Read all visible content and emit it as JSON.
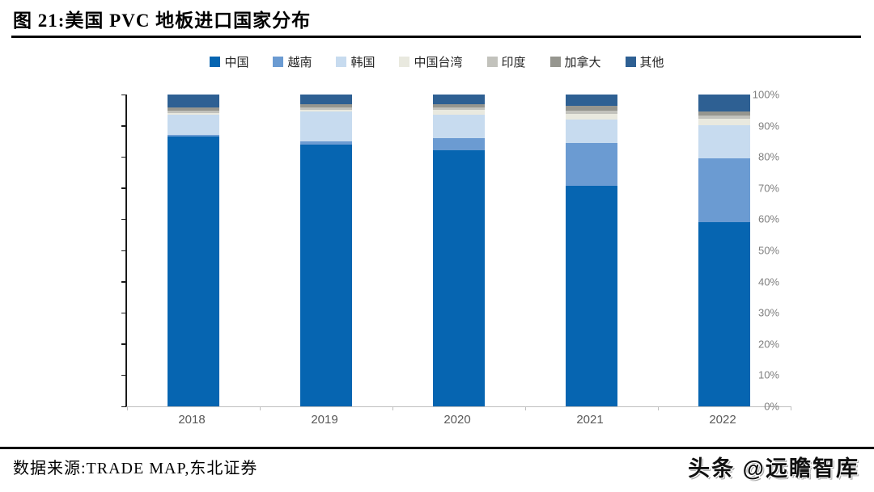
{
  "header": {
    "title": "图  21:美国 PVC 地板进口国家分布"
  },
  "footer": {
    "source": "数据来源:TRADE MAP,东北证券",
    "watermark": "头条 @远瞻智库"
  },
  "chart_data": {
    "type": "bar",
    "stacked": true,
    "title": "美国PVC地板进口国家分布",
    "categories": [
      "2018",
      "2019",
      "2020",
      "2021",
      "2022"
    ],
    "series": [
      {
        "name": "中国",
        "color": "#0665b1",
        "values": [
          86.5,
          84.0,
          82.0,
          70.7,
          59.0
        ]
      },
      {
        "name": "越南",
        "color": "#6b9bd2",
        "values": [
          0.5,
          1.0,
          4.0,
          13.8,
          20.5
        ]
      },
      {
        "name": "韩国",
        "color": "#c7dbef",
        "values": [
          6.5,
          9.5,
          7.5,
          7.5,
          10.7
        ]
      },
      {
        "name": "中国台湾",
        "color": "#e9e9df",
        "values": [
          0.5,
          0.5,
          1.5,
          1.8,
          2.0
        ]
      },
      {
        "name": "印度",
        "color": "#c2c2bc",
        "values": [
          0.8,
          0.8,
          0.8,
          1.0,
          1.1
        ]
      },
      {
        "name": "加拿大",
        "color": "#96968f",
        "values": [
          1.2,
          1.2,
          1.2,
          1.5,
          1.2
        ]
      },
      {
        "name": "其他",
        "color": "#2e6093",
        "values": [
          4.0,
          3.0,
          3.0,
          3.7,
          5.5
        ]
      }
    ],
    "ylim": [
      0,
      100
    ],
    "yticks": [
      "0%",
      "10%",
      "20%",
      "30%",
      "40%",
      "50%",
      "60%",
      "70%",
      "80%",
      "90%",
      "100%"
    ],
    "xlabel": "",
    "ylabel": "",
    "legend_position": "top",
    "grid": false
  }
}
